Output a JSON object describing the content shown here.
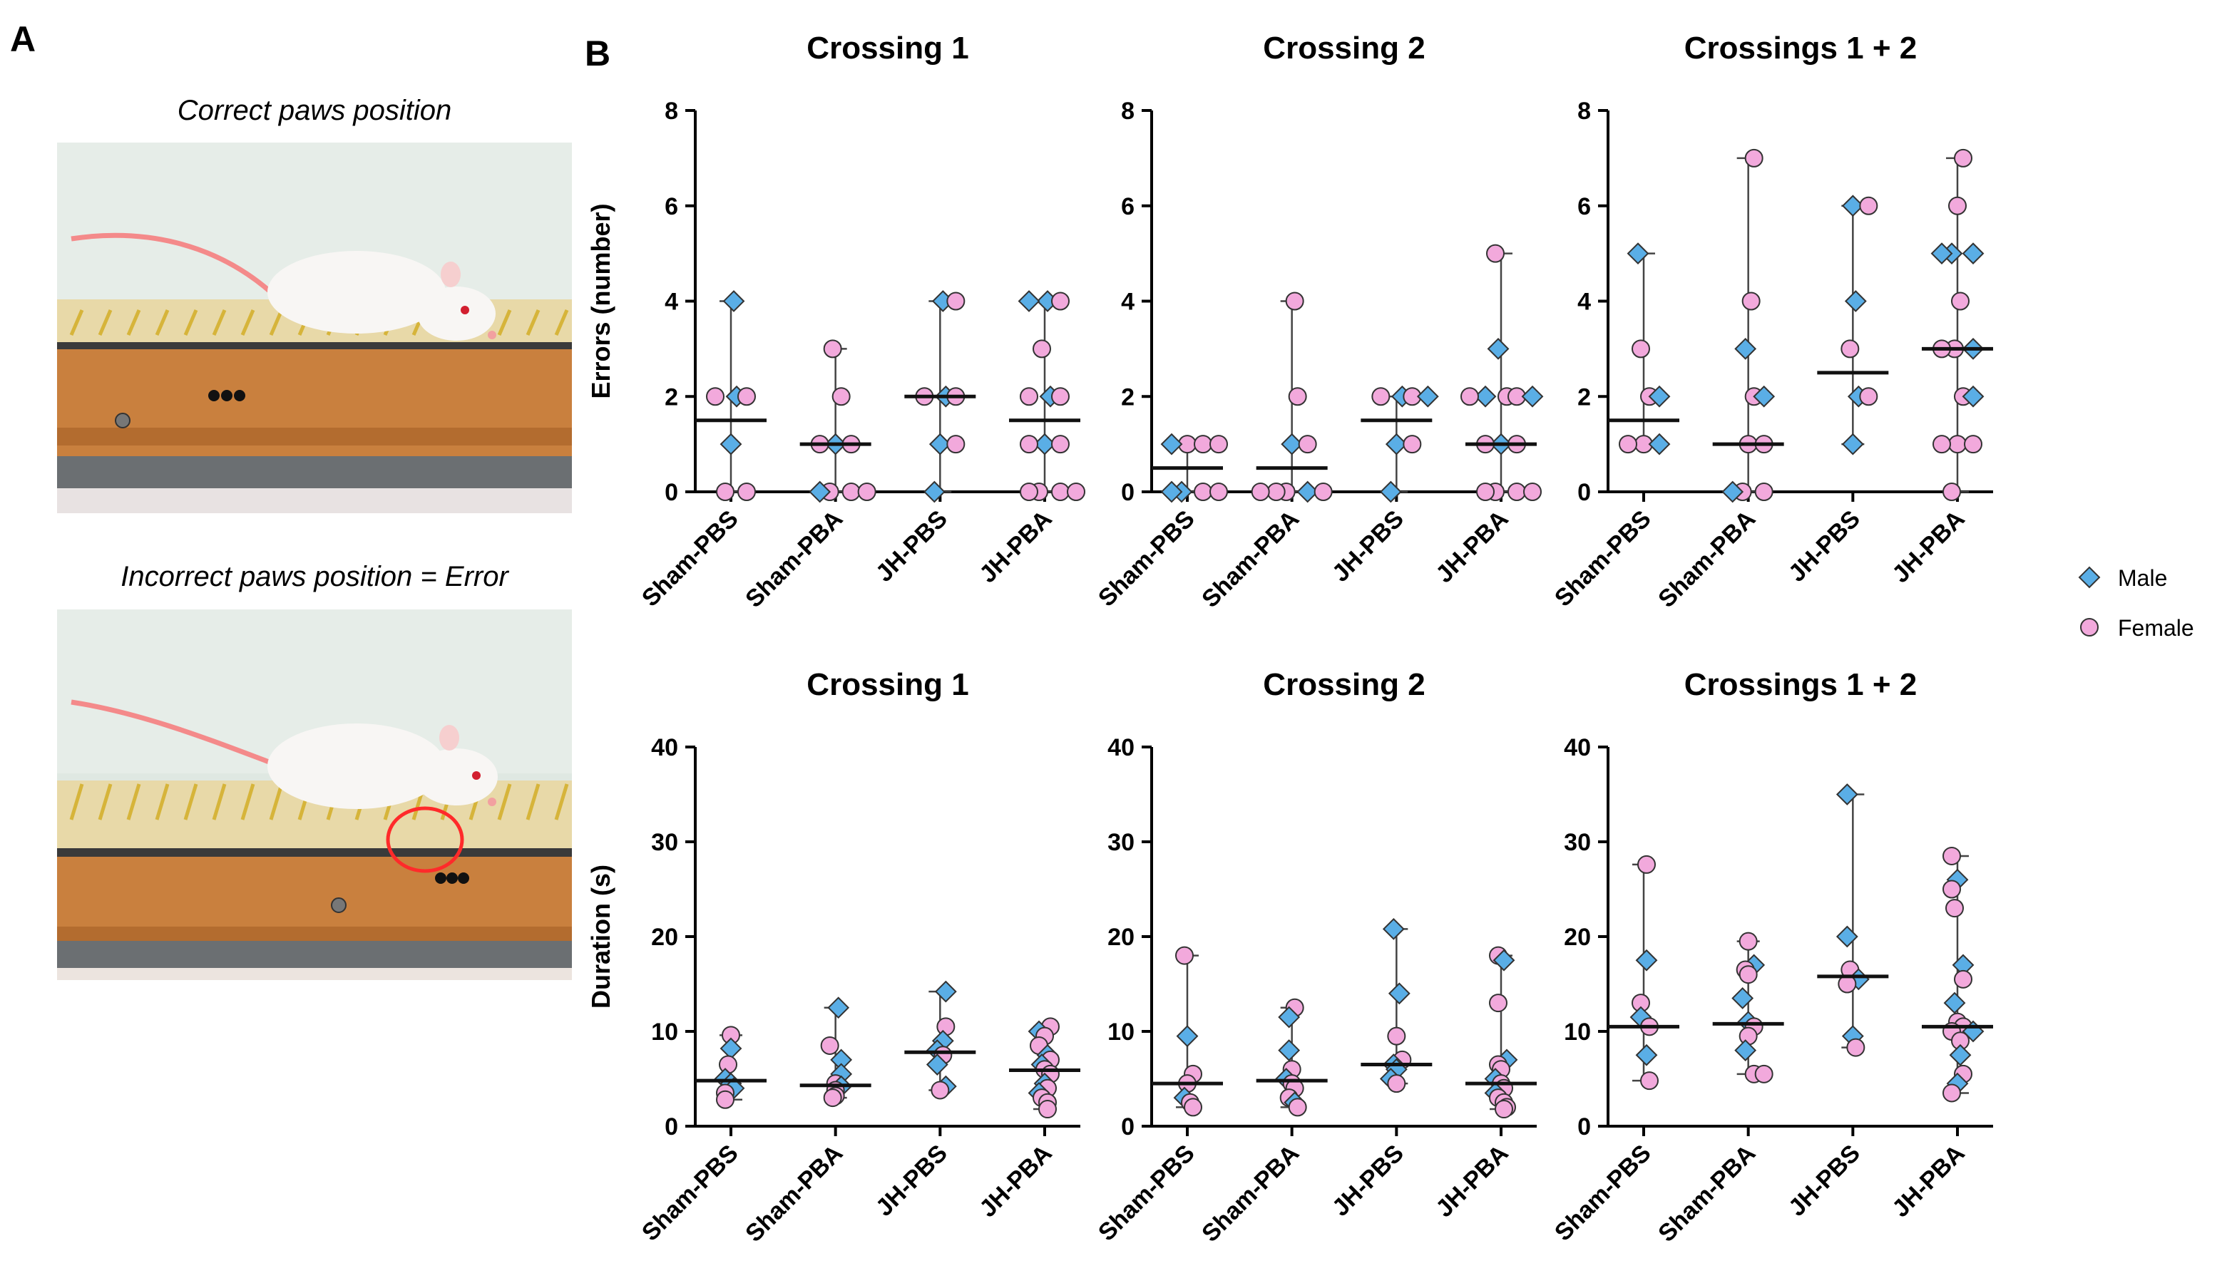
{
  "panel_a": {
    "label": "A",
    "correct_caption": "Correct paws position",
    "incorrect_caption": "Incorrect paws position = Error"
  },
  "panel_b": {
    "label": "B"
  },
  "legend": {
    "male": "Male",
    "female": "Female"
  },
  "colors": {
    "male": "#5aaee6",
    "female": "#f2a9dc",
    "marker_edge": "#333333",
    "axis": "#000000",
    "error_marker": "#ff2a2a"
  },
  "chart_data": [
    {
      "type": "scatter",
      "title": "Crossing 1",
      "ylabel": "Errors (number)",
      "ylim": [
        0,
        8
      ],
      "yticks": [
        0,
        2,
        4,
        6,
        8
      ],
      "categories": [
        "Sham-PBS",
        "Sham-PBA",
        "JH-PBS",
        "JH-PBA"
      ],
      "median": [
        1.5,
        1,
        2,
        1.5
      ],
      "range": [
        [
          0,
          4
        ],
        [
          0,
          3
        ],
        [
          0,
          4
        ],
        [
          0,
          4
        ]
      ],
      "points": [
        [
          [
            4,
            "M"
          ],
          [
            2,
            "M"
          ],
          [
            2,
            "F"
          ],
          [
            2,
            "F"
          ],
          [
            1,
            "M"
          ],
          [
            0,
            "F"
          ],
          [
            0,
            "F"
          ]
        ],
        [
          [
            3,
            "F"
          ],
          [
            2,
            "F"
          ],
          [
            1,
            "M"
          ],
          [
            1,
            "F"
          ],
          [
            1,
            "F"
          ],
          [
            0,
            "F"
          ],
          [
            0,
            "F"
          ],
          [
            0,
            "M"
          ],
          [
            0,
            "F"
          ]
        ],
        [
          [
            4,
            "M"
          ],
          [
            4,
            "F"
          ],
          [
            2,
            "M"
          ],
          [
            2,
            "F"
          ],
          [
            2,
            "F"
          ],
          [
            1,
            "M"
          ],
          [
            1,
            "F"
          ],
          [
            0,
            "M"
          ]
        ],
        [
          [
            4,
            "M"
          ],
          [
            4,
            "F"
          ],
          [
            4,
            "M"
          ],
          [
            3,
            "F"
          ],
          [
            2,
            "M"
          ],
          [
            2,
            "F"
          ],
          [
            2,
            "F"
          ],
          [
            1,
            "M"
          ],
          [
            1,
            "F"
          ],
          [
            1,
            "F"
          ],
          [
            0,
            "F"
          ],
          [
            0,
            "F"
          ],
          [
            0,
            "F"
          ],
          [
            0,
            "F"
          ]
        ]
      ]
    },
    {
      "type": "scatter",
      "title": "Crossing 2",
      "ylabel": "",
      "ylim": [
        0,
        8
      ],
      "yticks": [
        0,
        2,
        4,
        6,
        8
      ],
      "categories": [
        "Sham-PBS",
        "Sham-PBA",
        "JH-PBS",
        "JH-PBA"
      ],
      "median": [
        0.5,
        0.5,
        1.5,
        1
      ],
      "range": [
        [
          0,
          1
        ],
        [
          0,
          4
        ],
        [
          0,
          2
        ],
        [
          0,
          5
        ]
      ],
      "points": [
        [
          [
            1,
            "F"
          ],
          [
            1,
            "F"
          ],
          [
            1,
            "M"
          ],
          [
            1,
            "F"
          ],
          [
            0,
            "M"
          ],
          [
            0,
            "F"
          ],
          [
            0,
            "M"
          ],
          [
            0,
            "F"
          ]
        ],
        [
          [
            4,
            "F"
          ],
          [
            2,
            "F"
          ],
          [
            1,
            "M"
          ],
          [
            1,
            "F"
          ],
          [
            0,
            "F"
          ],
          [
            0,
            "M"
          ],
          [
            0,
            "F"
          ],
          [
            0,
            "F"
          ],
          [
            0,
            "F"
          ]
        ],
        [
          [
            2,
            "M"
          ],
          [
            2,
            "F"
          ],
          [
            2,
            "F"
          ],
          [
            2,
            "M"
          ],
          [
            1,
            "M"
          ],
          [
            1,
            "F"
          ],
          [
            0,
            "M"
          ]
        ],
        [
          [
            5,
            "F"
          ],
          [
            3,
            "M"
          ],
          [
            2,
            "F"
          ],
          [
            2,
            "F"
          ],
          [
            2,
            "M"
          ],
          [
            2,
            "M"
          ],
          [
            2,
            "F"
          ],
          [
            1,
            "M"
          ],
          [
            1,
            "F"
          ],
          [
            1,
            "F"
          ],
          [
            0,
            "F"
          ],
          [
            0,
            "F"
          ],
          [
            0,
            "F"
          ],
          [
            0,
            "F"
          ]
        ]
      ]
    },
    {
      "type": "scatter",
      "title": "Crossings 1 + 2",
      "ylabel": "",
      "ylim": [
        0,
        8
      ],
      "yticks": [
        0,
        2,
        4,
        6,
        8
      ],
      "categories": [
        "Sham-PBS",
        "Sham-PBA",
        "JH-PBS",
        "JH-PBA"
      ],
      "median": [
        1.5,
        1,
        2.5,
        3
      ],
      "range": [
        [
          1,
          5
        ],
        [
          0,
          7
        ],
        [
          1,
          6
        ],
        [
          0,
          7
        ]
      ],
      "points": [
        [
          [
            5,
            "M"
          ],
          [
            3,
            "F"
          ],
          [
            2,
            "F"
          ],
          [
            2,
            "M"
          ],
          [
            1,
            "F"
          ],
          [
            1,
            "M"
          ],
          [
            1,
            "F"
          ]
        ],
        [
          [
            7,
            "F"
          ],
          [
            4,
            "F"
          ],
          [
            3,
            "M"
          ],
          [
            2,
            "F"
          ],
          [
            2,
            "M"
          ],
          [
            1,
            "F"
          ],
          [
            1,
            "F"
          ],
          [
            0,
            "F"
          ],
          [
            0,
            "F"
          ],
          [
            0,
            "M"
          ]
        ],
        [
          [
            6,
            "M"
          ],
          [
            6,
            "F"
          ],
          [
            4,
            "M"
          ],
          [
            3,
            "F"
          ],
          [
            2,
            "M"
          ],
          [
            2,
            "F"
          ],
          [
            1,
            "M"
          ]
        ],
        [
          [
            7,
            "F"
          ],
          [
            6,
            "F"
          ],
          [
            5,
            "M"
          ],
          [
            5,
            "M"
          ],
          [
            5,
            "M"
          ],
          [
            4,
            "F"
          ],
          [
            3,
            "F"
          ],
          [
            3,
            "M"
          ],
          [
            3,
            "F"
          ],
          [
            2,
            "F"
          ],
          [
            2,
            "M"
          ],
          [
            1,
            "F"
          ],
          [
            1,
            "F"
          ],
          [
            1,
            "F"
          ],
          [
            0,
            "F"
          ]
        ]
      ]
    },
    {
      "type": "scatter",
      "title": "Crossing 1",
      "ylabel": "Duration (s)",
      "ylim": [
        0,
        40
      ],
      "yticks": [
        0,
        10,
        20,
        30,
        40
      ],
      "categories": [
        "Sham-PBS",
        "Sham-PBA",
        "JH-PBS",
        "JH-PBA"
      ],
      "median": [
        4.8,
        4.3,
        7.8,
        5.9
      ],
      "range": [
        [
          2.8,
          9.6
        ],
        [
          3,
          12.5
        ],
        [
          3.8,
          14.2
        ],
        [
          1.8,
          10.5
        ]
      ],
      "points": [
        [
          [
            9.6,
            "F"
          ],
          [
            8.2,
            "M"
          ],
          [
            6.5,
            "F"
          ],
          [
            5,
            "M"
          ],
          [
            4.5,
            "M"
          ],
          [
            4,
            "M"
          ],
          [
            3.5,
            "F"
          ],
          [
            2.8,
            "F"
          ]
        ],
        [
          [
            12.5,
            "M"
          ],
          [
            8.5,
            "F"
          ],
          [
            7,
            "M"
          ],
          [
            5.5,
            "M"
          ],
          [
            4.5,
            "F"
          ],
          [
            4.2,
            "M"
          ],
          [
            3.8,
            "F"
          ],
          [
            3.2,
            "F"
          ],
          [
            3,
            "F"
          ]
        ],
        [
          [
            14.2,
            "M"
          ],
          [
            10.5,
            "F"
          ],
          [
            9,
            "M"
          ],
          [
            8,
            "M"
          ],
          [
            7.5,
            "F"
          ],
          [
            6.5,
            "M"
          ],
          [
            4.2,
            "M"
          ],
          [
            3.8,
            "F"
          ]
        ],
        [
          [
            10.5,
            "F"
          ],
          [
            10,
            "M"
          ],
          [
            9.5,
            "F"
          ],
          [
            8.5,
            "F"
          ],
          [
            7.5,
            "M"
          ],
          [
            7,
            "F"
          ],
          [
            6.5,
            "M"
          ],
          [
            6,
            "F"
          ],
          [
            5.5,
            "F"
          ],
          [
            4.5,
            "M"
          ],
          [
            4,
            "F"
          ],
          [
            3.5,
            "M"
          ],
          [
            3,
            "F"
          ],
          [
            2.5,
            "F"
          ],
          [
            1.8,
            "F"
          ]
        ]
      ]
    },
    {
      "type": "scatter",
      "title": "Crossing 2",
      "ylabel": "",
      "ylim": [
        0,
        40
      ],
      "yticks": [
        0,
        10,
        20,
        30,
        40
      ],
      "categories": [
        "Sham-PBS",
        "Sham-PBA",
        "JH-PBS",
        "JH-PBA"
      ],
      "median": [
        4.5,
        4.8,
        6.5,
        4.5
      ],
      "range": [
        [
          2,
          18
        ],
        [
          2,
          12.5
        ],
        [
          4.5,
          20.8
        ],
        [
          1.8,
          18
        ]
      ],
      "points": [
        [
          [
            18,
            "F"
          ],
          [
            9.5,
            "M"
          ],
          [
            5.5,
            "F"
          ],
          [
            4.5,
            "F"
          ],
          [
            3,
            "M"
          ],
          [
            2.5,
            "F"
          ],
          [
            2,
            "F"
          ]
        ],
        [
          [
            12.5,
            "F"
          ],
          [
            11.5,
            "M"
          ],
          [
            8,
            "M"
          ],
          [
            6,
            "F"
          ],
          [
            5,
            "M"
          ],
          [
            4.5,
            "F"
          ],
          [
            4,
            "F"
          ],
          [
            3,
            "F"
          ],
          [
            2.5,
            "M"
          ],
          [
            2,
            "F"
          ]
        ],
        [
          [
            20.8,
            "M"
          ],
          [
            14,
            "M"
          ],
          [
            9.5,
            "F"
          ],
          [
            7,
            "F"
          ],
          [
            6.5,
            "M"
          ],
          [
            6,
            "M"
          ],
          [
            5,
            "M"
          ],
          [
            4.5,
            "F"
          ]
        ],
        [
          [
            18,
            "F"
          ],
          [
            17.5,
            "M"
          ],
          [
            13,
            "F"
          ],
          [
            7,
            "M"
          ],
          [
            6.5,
            "F"
          ],
          [
            6,
            "F"
          ],
          [
            5,
            "M"
          ],
          [
            4.5,
            "F"
          ],
          [
            4,
            "F"
          ],
          [
            3.5,
            "M"
          ],
          [
            3,
            "F"
          ],
          [
            2.5,
            "F"
          ],
          [
            2,
            "F"
          ],
          [
            1.8,
            "F"
          ]
        ]
      ]
    },
    {
      "type": "scatter",
      "title": "Crossings 1 + 2",
      "ylabel": "",
      "ylim": [
        0,
        40
      ],
      "yticks": [
        0,
        10,
        20,
        30,
        40
      ],
      "categories": [
        "Sham-PBS",
        "Sham-PBA",
        "JH-PBS",
        "JH-PBA"
      ],
      "median": [
        10.5,
        10.8,
        15.8,
        10.5
      ],
      "range": [
        [
          4.8,
          27.6
        ],
        [
          5.5,
          19.5
        ],
        [
          8.3,
          35
        ],
        [
          3.5,
          28.5
        ]
      ],
      "points": [
        [
          [
            27.6,
            "F"
          ],
          [
            17.5,
            "M"
          ],
          [
            13,
            "F"
          ],
          [
            11.5,
            "M"
          ],
          [
            10.5,
            "F"
          ],
          [
            7.5,
            "M"
          ],
          [
            4.8,
            "F"
          ]
        ],
        [
          [
            19.5,
            "F"
          ],
          [
            17,
            "M"
          ],
          [
            16.5,
            "F"
          ],
          [
            16,
            "F"
          ],
          [
            13.5,
            "M"
          ],
          [
            11,
            "M"
          ],
          [
            10.5,
            "F"
          ],
          [
            9.5,
            "F"
          ],
          [
            8,
            "M"
          ],
          [
            5.5,
            "F"
          ],
          [
            5.5,
            "F"
          ]
        ],
        [
          [
            35,
            "M"
          ],
          [
            20,
            "M"
          ],
          [
            16.5,
            "F"
          ],
          [
            15.5,
            "M"
          ],
          [
            15,
            "F"
          ],
          [
            9.5,
            "M"
          ],
          [
            8.3,
            "F"
          ]
        ],
        [
          [
            28.5,
            "F"
          ],
          [
            26,
            "M"
          ],
          [
            25,
            "F"
          ],
          [
            23,
            "F"
          ],
          [
            17,
            "M"
          ],
          [
            15.5,
            "F"
          ],
          [
            13,
            "M"
          ],
          [
            11,
            "F"
          ],
          [
            10.5,
            "F"
          ],
          [
            10,
            "F"
          ],
          [
            10,
            "M"
          ],
          [
            9,
            "F"
          ],
          [
            7.5,
            "M"
          ],
          [
            5.5,
            "F"
          ],
          [
            4.5,
            "M"
          ],
          [
            3.5,
            "F"
          ]
        ]
      ]
    }
  ]
}
